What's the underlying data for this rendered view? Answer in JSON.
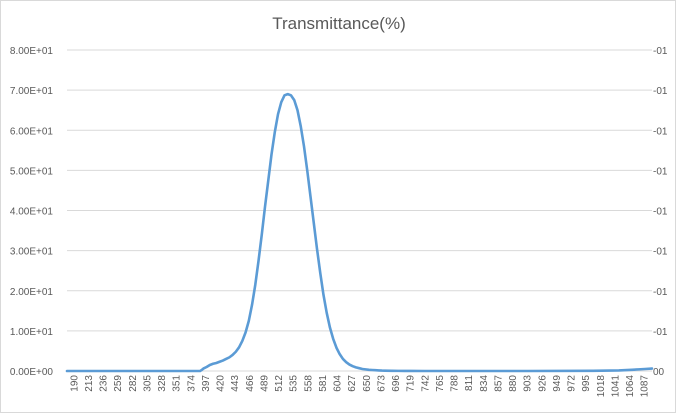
{
  "chart_data": {
    "type": "line",
    "title": "Transmittance(%)",
    "xlabel": "",
    "ylabel": "",
    "ylim": [
      0,
      80
    ],
    "y_tick_labels": [
      "0.00E+00",
      "1.00E+01",
      "2.00E+01",
      "3.00E+01",
      "4.00E+01",
      "5.00E+01",
      "6.00E+01",
      "7.00E+01",
      "8.00E+01"
    ],
    "y2_tick_labels": [
      "00",
      "-01",
      "-01",
      "-01",
      "-01",
      "-01",
      "-01",
      "-01",
      "-01"
    ],
    "x_tick_labels": [
      "190",
      "213",
      "236",
      "259",
      "282",
      "305",
      "328",
      "351",
      "374",
      "397",
      "420",
      "443",
      "466",
      "489",
      "512",
      "535",
      "558",
      "581",
      "604",
      "627",
      "650",
      "673",
      "696",
      "719",
      "742",
      "765",
      "788",
      "811",
      "834",
      "857",
      "880",
      "903",
      "926",
      "949",
      "972",
      "995",
      "1018",
      "1041",
      "1064",
      "1087"
    ],
    "xlim": [
      190,
      1091
    ],
    "grid": true,
    "legend": "none",
    "series_color": "#5b9bd5",
    "series": [
      {
        "x": [
          190,
          300,
          395,
          397,
          400,
          405,
          410,
          415,
          420,
          425,
          430,
          435,
          440,
          445,
          450,
          455,
          460,
          465,
          470,
          475,
          480,
          485,
          490,
          495,
          500,
          505,
          510,
          515,
          520,
          525,
          530,
          535,
          540,
          545,
          550,
          555,
          560,
          565,
          570,
          575,
          580,
          585,
          590,
          595,
          600,
          605,
          610,
          615,
          620,
          625,
          630,
          635,
          640,
          645,
          650,
          655,
          660,
          665,
          670,
          675,
          680,
          690,
          700,
          710,
          720,
          740,
          760,
          800,
          900,
          1000,
          1040,
          1060,
          1070,
          1080,
          1091
        ],
        "y": [
          0,
          0,
          0,
          0.2,
          0.6,
          1.0,
          1.5,
          1.8,
          2.0,
          2.3,
          2.6,
          3.0,
          3.4,
          4.0,
          4.8,
          5.9,
          7.5,
          9.6,
          12.5,
          16.5,
          21.5,
          27.5,
          34.0,
          41.0,
          47.5,
          54.0,
          59.5,
          64.0,
          67.0,
          68.7,
          69.0,
          68.7,
          67.5,
          65.0,
          61.0,
          56.0,
          50.0,
          43.5,
          37.0,
          30.5,
          24.5,
          19.0,
          14.5,
          10.8,
          8.0,
          5.8,
          4.2,
          3.0,
          2.2,
          1.6,
          1.2,
          0.9,
          0.7,
          0.5,
          0.4,
          0.3,
          0.25,
          0.2,
          0.15,
          0.1,
          0.08,
          0.05,
          0.03,
          0.02,
          0.01,
          0,
          0,
          0,
          0,
          0.05,
          0.15,
          0.3,
          0.4,
          0.5,
          0.6
        ]
      }
    ]
  }
}
